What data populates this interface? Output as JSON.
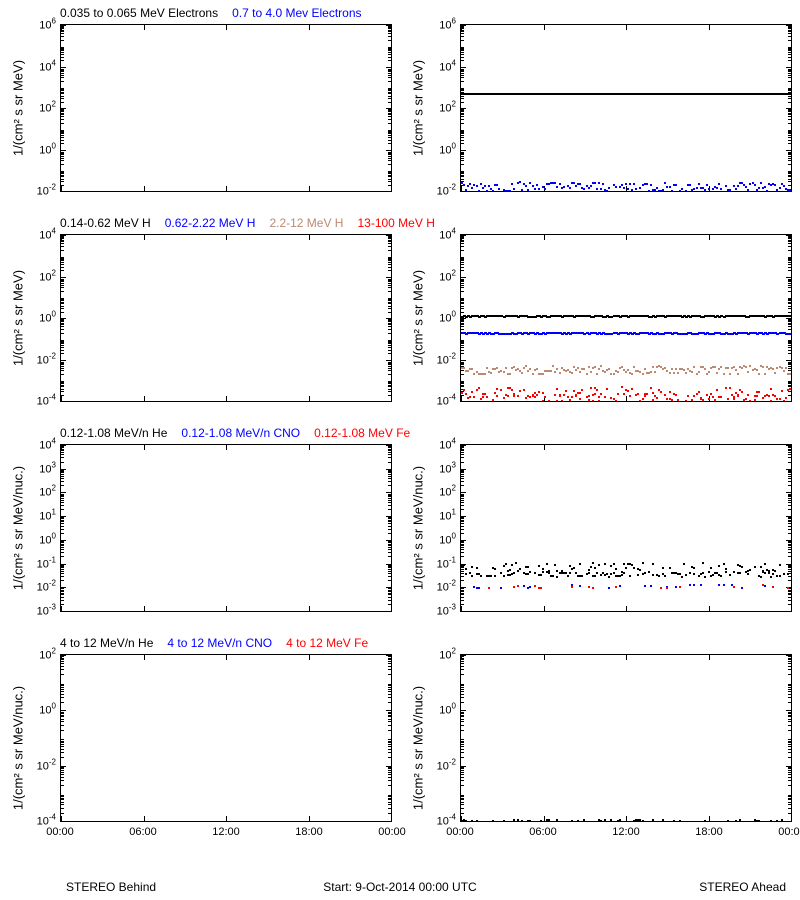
{
  "meta": {
    "background_color": "#ffffff",
    "tick_font_size": 11,
    "label_font_size": 13,
    "legend_font_size": 12,
    "axis_color": "#000000",
    "xticks": [
      "00:00",
      "06:00",
      "12:00",
      "18:00",
      "00:00"
    ],
    "xlim_hours": [
      0,
      24
    ],
    "footer_left": "STEREO Behind",
    "footer_mid": "Start:  9-Oct-2014 00:00 UTC",
    "footer_right": "STEREO Ahead"
  },
  "rows": [
    {
      "legend": [
        {
          "text": "0.035 to 0.065 MeV Electrons",
          "color": "#000000"
        },
        {
          "text": "0.7 to 4.0 Mev Electrons",
          "color": "#0000ff"
        }
      ],
      "ylabel": "1/(cm² s sr MeV)",
      "ylog_exps": [
        -2,
        0,
        2,
        4,
        6
      ],
      "left": {
        "series": []
      },
      "right": {
        "series": [
          {
            "type": "line",
            "color": "#000000",
            "y": 450,
            "jitter": 0.02,
            "width": 2
          },
          {
            "type": "noisy",
            "color": "#0000ff",
            "y": 0.015,
            "jitter": 0.5
          }
        ]
      }
    },
    {
      "legend": [
        {
          "text": "0.14-0.62 MeV H",
          "color": "#000000"
        },
        {
          "text": "0.62-2.22 MeV H",
          "color": "#0000ff"
        },
        {
          "text": "2.2-12 MeV H",
          "color": "#bd8970"
        },
        {
          "text": "13-100 MeV H",
          "color": "#ff0000"
        }
      ],
      "ylabel": "1/(cm² s sr MeV)",
      "ylog_exps": [
        -4,
        -2,
        0,
        2,
        4
      ],
      "left": {
        "series": []
      },
      "right": {
        "series": [
          {
            "type": "line",
            "color": "#000000",
            "y": 1.2,
            "jitter": 0.12,
            "width": 2
          },
          {
            "type": "line",
            "color": "#0000ff",
            "y": 0.18,
            "jitter": 0.15,
            "width": 2
          },
          {
            "type": "noisy",
            "color": "#bd8970",
            "y": 0.003,
            "jitter": 0.4
          },
          {
            "type": "noisy",
            "color": "#ff0000",
            "y": 0.00018,
            "jitter": 0.8
          },
          {
            "type": "sparse",
            "color": "#ff0000",
            "y": 8e-05,
            "jitter": 0.9,
            "density": 0.4
          }
        ]
      }
    },
    {
      "legend": [
        {
          "text": "0.12-1.08 MeV/n He",
          "color": "#000000"
        },
        {
          "text": "0.12-1.08 MeV/n CNO",
          "color": "#0000ff"
        },
        {
          "text": "0.12-1.08 MeV Fe",
          "color": "#ff0000"
        }
      ],
      "ylabel": "1/(cm² s sr MeV/nuc.)",
      "ylog_exps": [
        -3,
        -2,
        -1,
        0,
        1,
        2,
        3,
        4
      ],
      "left": {
        "series": []
      },
      "right": {
        "series": [
          {
            "type": "sparse",
            "color": "#000000",
            "y": 0.07,
            "jitter": 0.4,
            "density": 0.4
          },
          {
            "type": "sparse",
            "color": "#000000",
            "y": 0.035,
            "jitter": 0.2,
            "density": 0.7
          },
          {
            "type": "sparse",
            "color": "#0000ff",
            "y": 0.011,
            "jitter": 0.15,
            "density": 0.15
          },
          {
            "type": "sparse",
            "color": "#ff0000",
            "y": 0.0105,
            "jitter": 0.15,
            "density": 0.1
          }
        ]
      }
    },
    {
      "legend": [
        {
          "text": "4 to 12 MeV/n He",
          "color": "#000000"
        },
        {
          "text": "4 to 12 MeV/n CNO",
          "color": "#0000ff"
        },
        {
          "text": "4 to 12 MeV Fe",
          "color": "#ff0000"
        }
      ],
      "ylabel": "1/(cm² s sr MeV/nuc.)",
      "ylog_exps": [
        -4,
        -2,
        0,
        2
      ],
      "left": {
        "series": []
      },
      "right": {
        "series": [
          {
            "type": "sparse",
            "color": "#000000",
            "y": 0.0001,
            "jitter": 0.1,
            "density": 0.35
          }
        ]
      }
    }
  ]
}
